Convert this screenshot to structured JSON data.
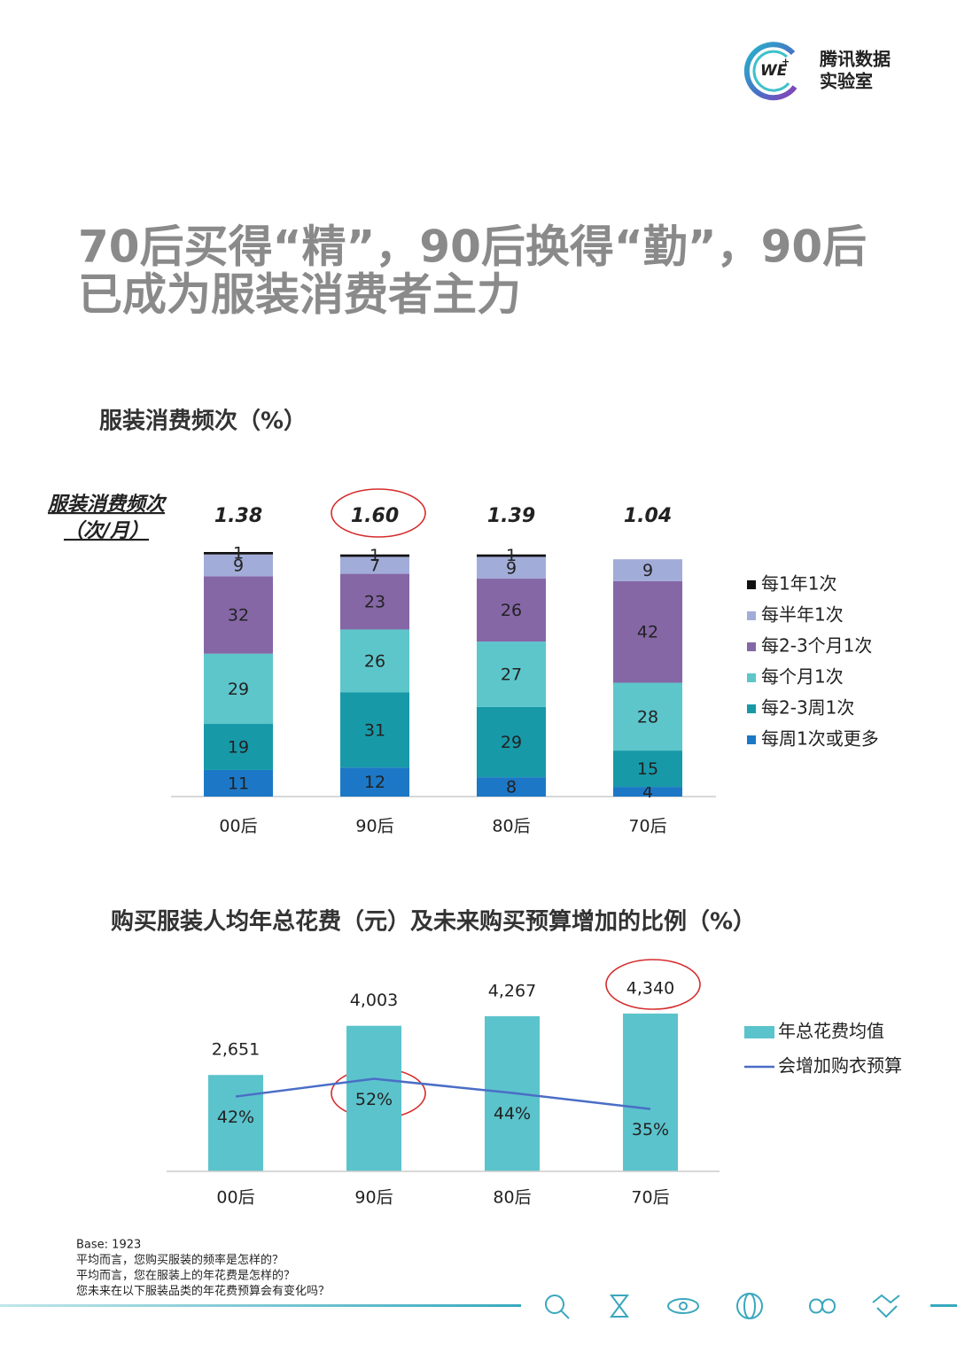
{
  "logo": {
    "mark": "WE",
    "sup": "+",
    "lines": [
      "腾讯数据",
      "实验室"
    ]
  },
  "title": [
    "70后买得“精”，90后换得“勤”，90后",
    "已成为服装消费者主力"
  ],
  "chart_data": [
    {
      "type": "stacked_bar",
      "title": "服装消费频次（%）",
      "frequency": {
        "label": [
          "服装消费频次",
          "（次/月）"
        ],
        "values": [
          1.38,
          1.6,
          1.39,
          1.04
        ],
        "value_labels": [
          "1.38",
          "1.60",
          "1.39",
          "1.04"
        ]
      },
      "categories": [
        "00后",
        "90后",
        "80后",
        "70后"
      ],
      "ylim": [
        0,
        101
      ],
      "series": [
        {
          "name": "每周1次或更多",
          "color": "#1c78c6",
          "values": [
            11,
            12,
            8,
            4
          ]
        },
        {
          "name": "每2-3周1次",
          "color": "#1799a8",
          "values": [
            19,
            31,
            29,
            15
          ]
        },
        {
          "name": "每个月1次",
          "color": "#5cc6cb",
          "values": [
            29,
            26,
            27,
            28
          ]
        },
        {
          "name": "每2-3个月1次",
          "color": "#8567a6",
          "values": [
            32,
            23,
            26,
            42
          ]
        },
        {
          "name": "每半年1次",
          "color": "#a2acd8",
          "values": [
            9,
            7,
            9,
            9
          ]
        },
        {
          "name": "每1年1次",
          "color": "#111111",
          "values": [
            1,
            1,
            1,
            null
          ]
        }
      ]
    },
    {
      "type": "bar_line",
      "title": "购买服装人均年总花费（元）及未来购买预算增加的比例（%）",
      "categories": [
        "00后",
        "90后",
        "80后",
        "70后"
      ],
      "ylim": [
        0,
        4800
      ],
      "y2lim": [
        0,
        98
      ],
      "series": [
        {
          "name": "年总花费均值",
          "type": "bar",
          "color": "#5bc3cc",
          "values": [
            2651,
            4003,
            4267,
            4340
          ],
          "value_labels": [
            "2,651",
            "4,003",
            "4,267",
            "4,340"
          ]
        },
        {
          "name": "会增加购衣预算",
          "type": "line",
          "axis": "y2",
          "color": "#4a6ec6",
          "values": [
            42,
            52,
            44,
            35
          ],
          "value_labels": [
            "42%",
            "52%",
            "44%",
            "35%"
          ]
        }
      ]
    }
  ],
  "notes": [
    "Base: 1923",
    "平均而言，您购买服装的频率是怎样的？",
    "平均而言，您在服装上的年花费是怎样的？",
    "您未来在以下服装品类的年花费预算会有变化吗？"
  ]
}
